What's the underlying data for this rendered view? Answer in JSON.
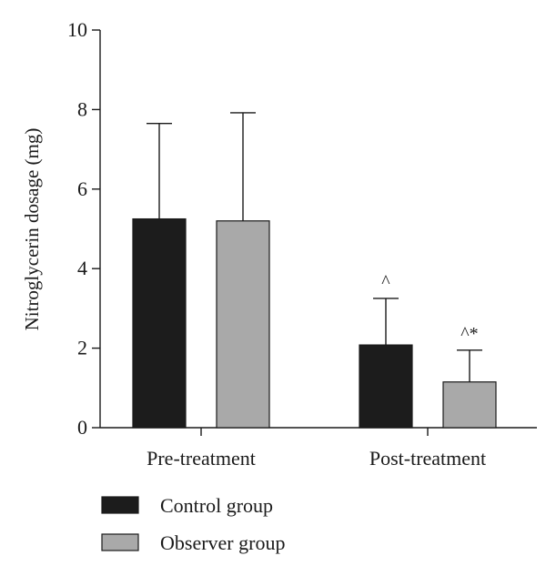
{
  "chart_data": {
    "type": "bar",
    "categories": [
      "Pre-treatment",
      "Post-treatment"
    ],
    "series": [
      {
        "name": "Control group",
        "values": [
          5.25,
          2.08
        ],
        "error": [
          2.4,
          1.17
        ],
        "annotations": [
          "",
          "^"
        ],
        "color": "#1c1c1c"
      },
      {
        "name": "Observer group",
        "values": [
          5.2,
          1.15
        ],
        "error": [
          2.72,
          0.8
        ],
        "annotations": [
          "",
          "^*"
        ],
        "color": "#a9a9a9"
      }
    ],
    "ylabel": "Nitroglycerin dosage (mg)",
    "xlabel": "",
    "ylim": [
      0,
      10
    ],
    "yticks": [
      0,
      2,
      4,
      6,
      8,
      10
    ],
    "legend_position": "bottom-left",
    "grid": false
  }
}
